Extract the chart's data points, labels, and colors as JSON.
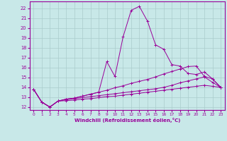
{
  "xlabel": "Windchill (Refroidissement éolien,°C)",
  "bg_color": "#c8e8e8",
  "grid_color": "#aacccc",
  "line_color": "#990099",
  "xlim": [
    -0.5,
    23.5
  ],
  "ylim": [
    11.7,
    22.7
  ],
  "xticks": [
    0,
    1,
    2,
    3,
    4,
    5,
    6,
    7,
    8,
    9,
    10,
    11,
    12,
    13,
    14,
    15,
    16,
    17,
    18,
    19,
    20,
    21,
    22,
    23
  ],
  "yticks": [
    12,
    13,
    14,
    15,
    16,
    17,
    18,
    19,
    20,
    21,
    22
  ],
  "line1_x": [
    0,
    1,
    2,
    3,
    4,
    5,
    6,
    7,
    8,
    9,
    10,
    11,
    12,
    13,
    14,
    15,
    16,
    17,
    18,
    19,
    20,
    21,
    22,
    23
  ],
  "line1_y": [
    13.8,
    12.5,
    12.0,
    12.6,
    12.8,
    12.9,
    13.1,
    13.3,
    13.5,
    16.6,
    15.1,
    19.1,
    21.8,
    22.2,
    20.7,
    18.3,
    17.85,
    16.3,
    16.15,
    15.4,
    15.3,
    15.55,
    14.85,
    14.0
  ],
  "line2_x": [
    0,
    1,
    2,
    3,
    4,
    5,
    6,
    7,
    8,
    9,
    10,
    11,
    12,
    13,
    14,
    15,
    16,
    17,
    18,
    19,
    20,
    21,
    22,
    23
  ],
  "line2_y": [
    13.8,
    12.5,
    12.0,
    12.6,
    12.8,
    12.9,
    13.1,
    13.3,
    13.5,
    13.7,
    13.95,
    14.15,
    14.4,
    14.6,
    14.8,
    15.05,
    15.35,
    15.6,
    15.85,
    16.1,
    16.15,
    15.1,
    14.85,
    14.0
  ],
  "line3_x": [
    0,
    1,
    2,
    3,
    4,
    5,
    6,
    7,
    8,
    9,
    10,
    11,
    12,
    13,
    14,
    15,
    16,
    17,
    18,
    19,
    20,
    21,
    22,
    23
  ],
  "line3_y": [
    13.8,
    12.5,
    12.0,
    12.6,
    12.75,
    12.85,
    12.95,
    13.05,
    13.15,
    13.25,
    13.35,
    13.45,
    13.55,
    13.65,
    13.75,
    13.85,
    14.0,
    14.2,
    14.45,
    14.65,
    14.85,
    15.05,
    14.5,
    14.0
  ],
  "line4_x": [
    0,
    1,
    2,
    3,
    4,
    5,
    6,
    7,
    8,
    9,
    10,
    11,
    12,
    13,
    14,
    15,
    16,
    17,
    18,
    19,
    20,
    21,
    22,
    23
  ],
  "line4_y": [
    13.8,
    12.5,
    12.0,
    12.6,
    12.65,
    12.7,
    12.8,
    12.85,
    12.95,
    13.05,
    13.1,
    13.2,
    13.3,
    13.4,
    13.5,
    13.6,
    13.7,
    13.8,
    13.9,
    14.0,
    14.1,
    14.2,
    14.1,
    14.0
  ]
}
